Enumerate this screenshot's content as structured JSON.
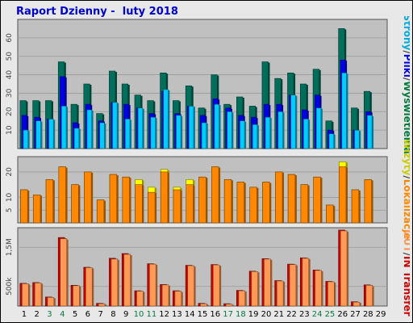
{
  "title": "Raport Dzienny -  luty 2018",
  "colors": {
    "background": "#e8e8e8",
    "plot": "#c0c0c0",
    "wyswietlenia": "#006e5a",
    "pliki": "#0000e6",
    "strony": "#00ccff",
    "wizyty": "#ffff00",
    "lokalizacje": "#ff8800",
    "transfer_in": "#cc0000",
    "transfer_out": "#ff9955",
    "weekend_label": "#007a3d",
    "weekday_label": "#000000"
  },
  "legend": {
    "top": [
      {
        "text": "Wyświetlenia",
        "color": "#007a3d"
      },
      {
        "text": "/",
        "color": "#444444"
      },
      {
        "text": "Pliki",
        "color": "#0000e6"
      },
      {
        "text": "/",
        "color": "#444444"
      },
      {
        "text": "Strony",
        "color": "#00aadd"
      }
    ],
    "middle": [
      {
        "text": "Lokalizacje",
        "color": "#ff8800"
      },
      {
        "text": "/",
        "color": "#444444"
      },
      {
        "text": "Wizyty",
        "color": "#cccc00"
      }
    ],
    "bottom": [
      {
        "text": "Transfer",
        "color": "#cc0000"
      },
      {
        "text": "IN",
        "color": "#cc0000"
      },
      {
        "text": "/",
        "color": "#444444"
      },
      {
        "text": "OUT",
        "color": "#ff9955"
      }
    ]
  },
  "chart_data": [
    {
      "type": "bar",
      "panel": "top",
      "ylim": [
        0,
        70
      ],
      "yticks": [
        10,
        20,
        30,
        40,
        50,
        60
      ],
      "categories": [
        "1",
        "2",
        "3",
        "4",
        "5",
        "6",
        "7",
        "8",
        "9",
        "10",
        "11",
        "12",
        "13",
        "14",
        "15",
        "16",
        "17",
        "18",
        "19",
        "20",
        "21",
        "22",
        "23",
        "24",
        "25",
        "26",
        "27",
        "28",
        "29"
      ],
      "series": [
        {
          "name": "Wyświetlenia",
          "values": [
            26,
            26,
            26,
            47,
            24,
            35,
            19,
            42,
            35,
            29,
            26,
            41,
            26,
            34,
            22,
            40,
            24,
            28,
            23,
            47,
            38,
            41,
            35,
            43,
            15,
            65,
            22,
            31,
            0
          ]
        },
        {
          "name": "Pliki",
          "values": [
            18,
            17,
            16,
            39,
            14,
            24,
            15,
            25,
            24,
            22,
            19,
            31,
            19,
            23,
            18,
            27,
            22,
            18,
            17,
            24,
            24,
            29,
            21,
            29,
            10,
            48,
            10,
            20,
            0
          ]
        },
        {
          "name": "Strony",
          "values": [
            10,
            15,
            16,
            23,
            11,
            21,
            14,
            25,
            16,
            22,
            17,
            32,
            18,
            23,
            14,
            24,
            20,
            15,
            13,
            17,
            20,
            29,
            16,
            22,
            8,
            41,
            10,
            18,
            0
          ]
        }
      ]
    },
    {
      "type": "bar",
      "panel": "middle",
      "ylim": [
        0,
        26
      ],
      "yticks": [
        5,
        10,
        20
      ],
      "categories": [
        "1",
        "2",
        "3",
        "4",
        "5",
        "6",
        "7",
        "8",
        "9",
        "10",
        "11",
        "12",
        "13",
        "14",
        "15",
        "16",
        "17",
        "18",
        "19",
        "20",
        "21",
        "22",
        "23",
        "24",
        "25",
        "26",
        "27",
        "28",
        "29"
      ],
      "series": [
        {
          "name": "Wizyty",
          "values": [
            13,
            11,
            17,
            22,
            15,
            20,
            9,
            19,
            18,
            17,
            14,
            21,
            14,
            17,
            18,
            22,
            17,
            16,
            14,
            16,
            20,
            19,
            15,
            18,
            7,
            24,
            13,
            17,
            0
          ]
        },
        {
          "name": "Lokalizacje",
          "values": [
            13,
            11,
            17,
            22,
            15,
            20,
            9,
            19,
            18,
            15,
            12,
            20,
            13,
            15,
            18,
            22,
            17,
            16,
            14,
            16,
            20,
            19,
            15,
            18,
            7,
            22,
            13,
            17,
            0
          ]
        }
      ]
    },
    {
      "type": "bar",
      "panel": "bottom",
      "ylim": [
        0,
        2000000
      ],
      "yticks": [
        500000,
        1500000
      ],
      "ytick_labels": {
        "500000": "500k",
        "1500000": "1,5M"
      },
      "categories": [
        "1",
        "2",
        "3",
        "4",
        "5",
        "6",
        "7",
        "8",
        "9",
        "10",
        "11",
        "12",
        "13",
        "14",
        "15",
        "16",
        "17",
        "18",
        "19",
        "20",
        "21",
        "22",
        "23",
        "24",
        "25",
        "26",
        "27",
        "28",
        "29"
      ],
      "series": [
        {
          "name": "Transfer IN",
          "values": [
            580000,
            600000,
            230000,
            1750000,
            530000,
            990000,
            70000,
            1220000,
            1340000,
            390000,
            1080000,
            550000,
            390000,
            1040000,
            70000,
            1060000,
            60000,
            400000,
            890000,
            1210000,
            650000,
            1070000,
            1230000,
            920000,
            630000,
            1940000,
            110000,
            540000,
            0
          ]
        },
        {
          "name": "Transfer OUT",
          "values": [
            570000,
            590000,
            220000,
            1720000,
            520000,
            980000,
            60000,
            1200000,
            1320000,
            380000,
            1070000,
            540000,
            380000,
            1030000,
            60000,
            1050000,
            50000,
            390000,
            880000,
            1200000,
            640000,
            1060000,
            1220000,
            910000,
            620000,
            1920000,
            100000,
            530000,
            0
          ]
        }
      ]
    }
  ],
  "days": [
    {
      "label": "1",
      "weekend": false
    },
    {
      "label": "2",
      "weekend": false
    },
    {
      "label": "3",
      "weekend": true
    },
    {
      "label": "4",
      "weekend": true
    },
    {
      "label": "5",
      "weekend": false
    },
    {
      "label": "6",
      "weekend": false
    },
    {
      "label": "7",
      "weekend": false
    },
    {
      "label": "8",
      "weekend": false
    },
    {
      "label": "9",
      "weekend": false
    },
    {
      "label": "10",
      "weekend": true
    },
    {
      "label": "11",
      "weekend": true
    },
    {
      "label": "12",
      "weekend": false
    },
    {
      "label": "13",
      "weekend": false
    },
    {
      "label": "14",
      "weekend": false
    },
    {
      "label": "15",
      "weekend": false
    },
    {
      "label": "16",
      "weekend": false
    },
    {
      "label": "17",
      "weekend": true
    },
    {
      "label": "18",
      "weekend": true
    },
    {
      "label": "19",
      "weekend": false
    },
    {
      "label": "20",
      "weekend": false
    },
    {
      "label": "21",
      "weekend": false
    },
    {
      "label": "22",
      "weekend": false
    },
    {
      "label": "23",
      "weekend": false
    },
    {
      "label": "24",
      "weekend": true
    },
    {
      "label": "25",
      "weekend": true
    },
    {
      "label": "26",
      "weekend": false
    },
    {
      "label": "27",
      "weekend": false
    },
    {
      "label": "28",
      "weekend": false
    },
    {
      "label": "29",
      "weekend": false
    }
  ]
}
